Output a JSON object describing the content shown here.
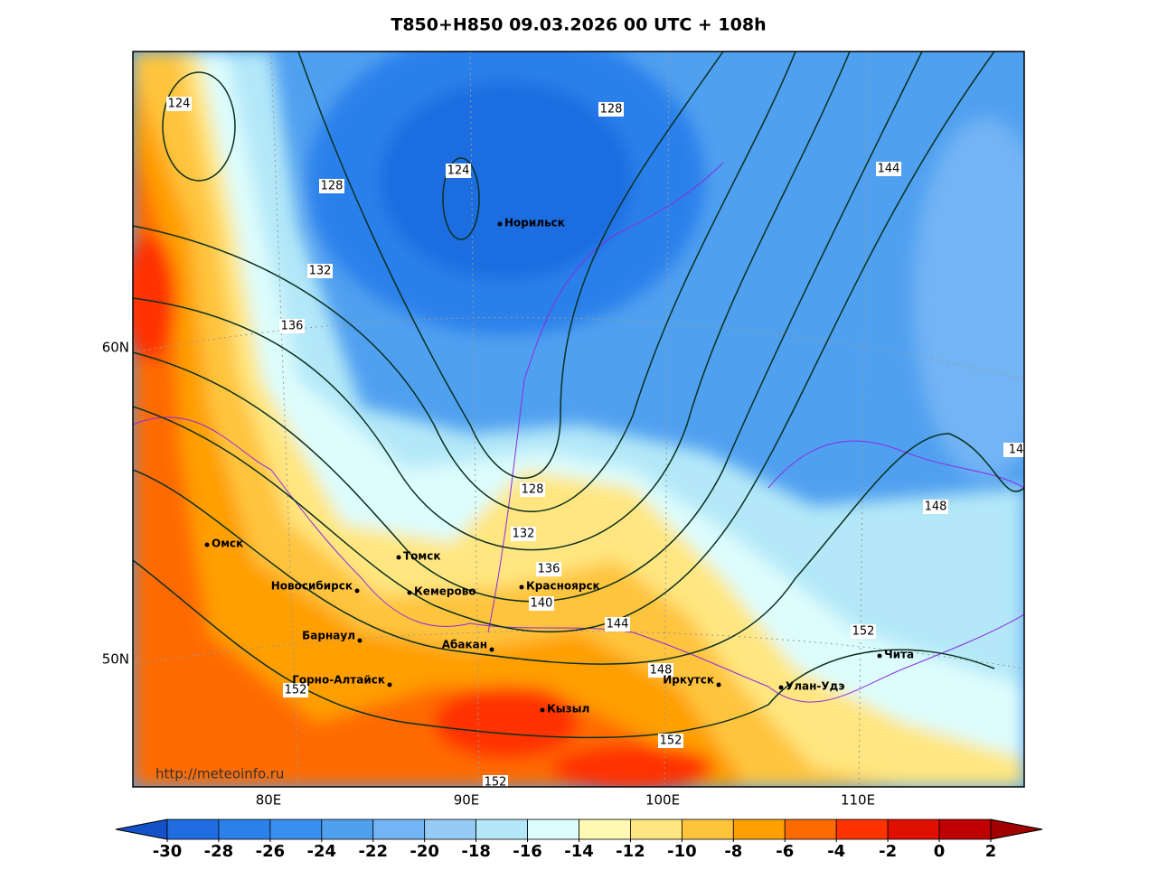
{
  "title": "T850+H850 09.03.2026 00 UTC + 108h",
  "url": "http://meteoinfo.ru",
  "axis_labels": {
    "lon": [
      "80E",
      "90E",
      "100E",
      "110E"
    ],
    "lat": [
      "60N",
      "50N"
    ]
  },
  "cities": [
    "Норильск",
    "Омск",
    "Томск",
    "Новосибирск",
    "Кемерово",
    "Красноярск",
    "Барнаул",
    "Абакан",
    "Горно-Алтайск",
    "Кызыл",
    "Иркутск",
    "Улан-Удэ",
    "Чита"
  ],
  "contour_labels": [
    "124",
    "124",
    "128",
    "128",
    "132",
    "136",
    "144",
    "148",
    "128",
    "132",
    "136",
    "140",
    "144",
    "148",
    "152",
    "152",
    "152",
    "152",
    "14"
  ],
  "colorbar": {
    "ticks": [
      -30,
      -28,
      -26,
      -24,
      -22,
      -20,
      -18,
      -16,
      -14,
      -12,
      -10,
      -8,
      -6,
      -4,
      -2,
      0,
      2
    ],
    "colors": [
      "#1450c8",
      "#1f6de0",
      "#2b80ea",
      "#3a8eef",
      "#50a0f0",
      "#72b4f4",
      "#96cbf6",
      "#b4e8f8",
      "#ddfdfd",
      "#fff9b4",
      "#ffe680",
      "#ffc43c",
      "#ff9f00",
      "#ff6a00",
      "#ff3300",
      "#e01000",
      "#c00000",
      "#a00000"
    ]
  }
}
